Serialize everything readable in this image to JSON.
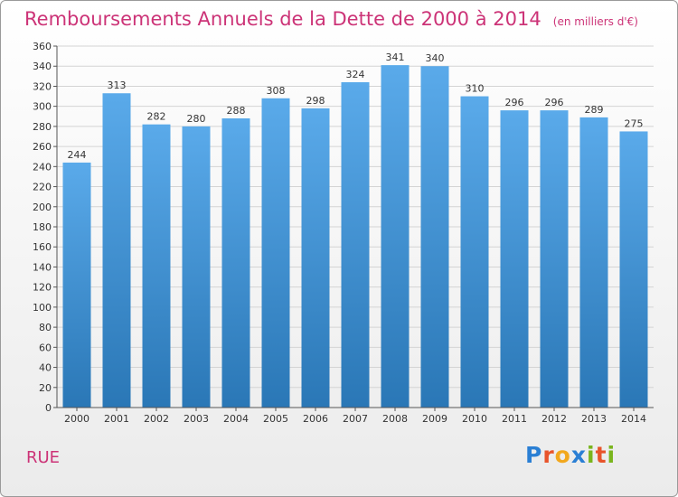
{
  "title": "Remboursements Annuels de la Dette de 2000 à 2014",
  "subtitle": "(en milliers d'€)",
  "commune": "RUE",
  "logo": {
    "text": "Proxiti",
    "letters": [
      {
        "ch": "P",
        "color": "#2a7fd4"
      },
      {
        "ch": "r",
        "color": "#e8542b"
      },
      {
        "ch": "o",
        "color": "#f2a81d"
      },
      {
        "ch": "x",
        "color": "#2a7fd4"
      },
      {
        "ch": "i",
        "color": "#7ab51d"
      },
      {
        "ch": "t",
        "color": "#e8542b"
      },
      {
        "ch": "i",
        "color": "#7ab51d"
      }
    ]
  },
  "colors": {
    "title": "#cc3377",
    "bar_top": "#5aaaea",
    "bar_bottom": "#2a77b6",
    "grid": "#d4d4d4",
    "axis": "#555555",
    "text": "#333333"
  },
  "chart_data": {
    "type": "bar",
    "title": "Remboursements Annuels de la Dette de 2000 à 2014",
    "ylabel": "(en milliers d'€)",
    "xlabel": "",
    "categories": [
      "2000",
      "2001",
      "2002",
      "2003",
      "2004",
      "2005",
      "2006",
      "2007",
      "2008",
      "2009",
      "2010",
      "2011",
      "2012",
      "2013",
      "2014"
    ],
    "values": [
      244,
      313,
      282,
      280,
      288,
      308,
      298,
      324,
      341,
      340,
      310,
      296,
      296,
      289,
      275
    ],
    "ylim": [
      0,
      360
    ],
    "ytick_step": 20,
    "grid": true
  }
}
